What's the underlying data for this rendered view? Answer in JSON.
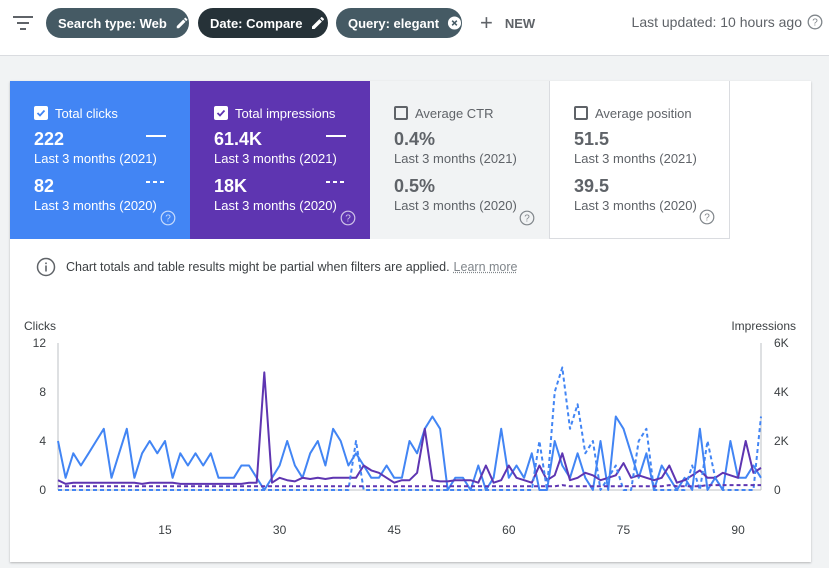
{
  "filters": {
    "chips": [
      {
        "label": "Search type: Web",
        "icon": "pencil-icon",
        "style": "grey"
      },
      {
        "label": "Date: Compare",
        "icon": "pencil-icon",
        "style": "dark"
      },
      {
        "label": "Query: elegant",
        "icon": "close-circle-icon",
        "style": "grey"
      }
    ],
    "new_label": "NEW",
    "last_updated": "Last updated: 10 hours ago"
  },
  "metrics": [
    {
      "label": "Total clicks",
      "checked": true,
      "value_current": "222",
      "period_current": "Last 3 months (2021)",
      "value_previous": "82",
      "period_previous": "Last 3 months (2020)",
      "color": "#4285f4"
    },
    {
      "label": "Total impressions",
      "checked": true,
      "value_current": "61.4K",
      "period_current": "Last 3 months (2021)",
      "value_previous": "18K",
      "period_previous": "Last 3 months (2020)",
      "color": "#5e35b1"
    },
    {
      "label": "Average CTR",
      "checked": false,
      "value_current": "0.4%",
      "period_current": "Last 3 months (2021)",
      "value_previous": "0.5%",
      "period_previous": "Last 3 months (2020)",
      "color": "#f1f3f4"
    },
    {
      "label": "Average position",
      "checked": false,
      "value_current": "51.5",
      "period_current": "Last 3 months (2021)",
      "value_previous": "39.5",
      "period_previous": "Last 3 months (2020)",
      "color": "#ffffff"
    }
  ],
  "notice": {
    "text": "Chart totals and table results might be partial when filters are applied.",
    "link": "Learn more"
  },
  "chart_data": {
    "type": "line",
    "ylabel_left": "Clicks",
    "ylabel_right": "Impressions",
    "y_left_ticks": [
      0,
      4,
      8,
      12
    ],
    "y_right_ticks": [
      "0",
      "2K",
      "4K",
      "6K"
    ],
    "y_left_range": [
      0,
      12
    ],
    "y_right_range": [
      0,
      6000
    ],
    "x_ticks": [
      15,
      30,
      45,
      60,
      75,
      90
    ],
    "x_range": [
      1,
      93
    ],
    "grid": false,
    "series": [
      {
        "axis": "left",
        "style": "solid",
        "color": "#4285f4",
        "values": [
          4,
          1,
          3,
          2,
          3,
          4,
          5,
          1,
          3,
          5,
          1,
          3,
          4,
          3,
          4,
          1,
          3,
          2,
          3,
          2,
          3,
          1,
          1,
          1,
          2,
          2,
          1,
          0,
          1,
          2,
          4,
          2,
          1,
          3,
          4,
          2,
          5,
          4,
          2,
          3,
          2,
          1,
          1,
          2,
          1,
          1,
          4,
          3,
          5,
          6,
          5,
          0,
          1,
          1,
          0,
          2,
          0,
          1,
          5,
          1,
          2,
          1,
          3,
          0,
          0,
          4,
          2,
          1,
          3,
          1,
          0,
          4,
          0,
          6,
          5,
          3,
          1,
          3,
          0,
          2,
          1,
          0,
          1,
          0,
          5,
          0,
          1,
          0,
          4,
          1,
          1,
          2,
          1
        ]
      },
      {
        "axis": "right",
        "style": "solid",
        "color": "#5e35b1",
        "values": [
          400,
          250,
          300,
          300,
          300,
          300,
          300,
          300,
          300,
          300,
          300,
          250,
          300,
          300,
          300,
          300,
          250,
          250,
          250,
          250,
          250,
          250,
          250,
          250,
          250,
          300,
          300,
          4800,
          300,
          500,
          400,
          350,
          500,
          450,
          500,
          450,
          500,
          500,
          500,
          500,
          1000,
          800,
          700,
          500,
          300,
          400,
          400,
          700,
          2500,
          400,
          350,
          350,
          400,
          400,
          400,
          300,
          1000,
          300,
          400,
          1000,
          500,
          400,
          300,
          1000,
          400,
          600,
          1500,
          400,
          500,
          700,
          600,
          400,
          500,
          600,
          1100,
          500,
          600,
          500,
          400,
          500,
          1000,
          300,
          400,
          600,
          800,
          500,
          500,
          700,
          600,
          500,
          2000,
          700,
          900
        ]
      },
      {
        "axis": "left",
        "style": "dashed",
        "color": "#4285f4",
        "values": [
          0,
          0,
          0,
          0,
          0,
          0,
          0,
          0,
          0,
          0,
          0,
          0,
          0,
          0,
          0,
          0,
          0,
          0,
          0,
          0,
          0,
          0,
          0,
          0,
          0,
          0,
          0,
          0,
          0,
          0,
          0,
          0,
          0,
          0,
          0,
          0,
          0,
          0,
          0,
          4,
          0,
          0,
          0,
          0,
          0,
          0,
          0,
          0,
          0,
          0,
          0,
          0,
          0,
          0,
          0,
          0,
          0,
          0,
          0,
          0,
          0,
          0,
          0,
          4,
          0,
          8,
          10,
          5,
          7,
          3,
          4,
          0,
          1,
          2,
          0,
          0,
          4,
          5,
          0,
          0,
          0,
          0,
          0,
          2,
          0,
          4,
          1,
          0,
          0,
          0,
          0,
          0,
          6
        ]
      },
      {
        "axis": "right",
        "style": "dashed",
        "color": "#5e35b1",
        "values": [
          150,
          150,
          150,
          150,
          150,
          150,
          150,
          150,
          150,
          150,
          150,
          150,
          150,
          150,
          150,
          150,
          150,
          150,
          150,
          150,
          150,
          150,
          150,
          150,
          150,
          150,
          150,
          150,
          150,
          150,
          150,
          150,
          150,
          150,
          150,
          150,
          150,
          150,
          150,
          150,
          150,
          150,
          150,
          150,
          150,
          150,
          150,
          150,
          150,
          150,
          150,
          150,
          150,
          150,
          150,
          150,
          150,
          150,
          150,
          150,
          150,
          150,
          150,
          150,
          150,
          150,
          200,
          150,
          150,
          150,
          150,
          150,
          150,
          150,
          150,
          150,
          150,
          150,
          150,
          150,
          200,
          150,
          150,
          150,
          150,
          200,
          200,
          200,
          200,
          200,
          200,
          200,
          200
        ]
      }
    ]
  }
}
